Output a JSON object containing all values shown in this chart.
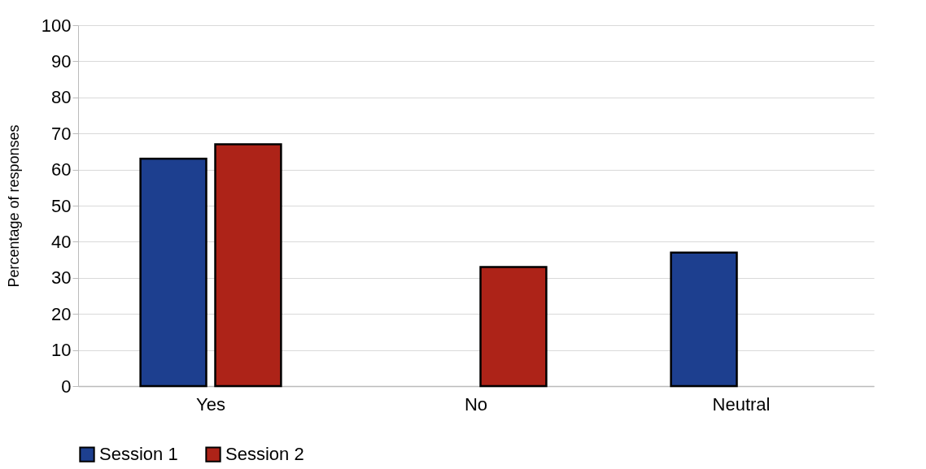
{
  "chart_data": {
    "type": "bar",
    "ylabel": "Percentage of responses",
    "categories": [
      "Yes",
      "No",
      "Neutral"
    ],
    "series": [
      {
        "name": "Session 1",
        "color": "#1d3f8f",
        "values": [
          63,
          null,
          37
        ]
      },
      {
        "name": "Session 2",
        "color": "#ad2318",
        "values": [
          67,
          33,
          null
        ]
      }
    ],
    "ylim": [
      0,
      100
    ],
    "yticks": [
      0,
      10,
      20,
      30,
      40,
      50,
      60,
      70,
      80,
      90,
      100
    ],
    "grid": "y",
    "legend": "bottom"
  }
}
